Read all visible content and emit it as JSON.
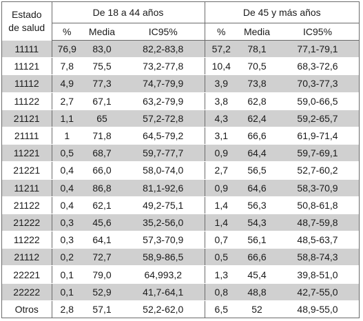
{
  "header": {
    "estado_line1": "Estado",
    "estado_line2": "de salud",
    "group1": "De 18 a 44 años",
    "group2": "De 45 y más años",
    "col_pct": "%",
    "col_media": "Media",
    "col_ic": "IC95%"
  },
  "rows": [
    {
      "estado": "11111",
      "p1": "76,9",
      "m1": "83,0",
      "ic1": "82,2-83,8",
      "p2": "57,2",
      "m2": "78,1",
      "ic2": "77,1-79,1"
    },
    {
      "estado": "11121",
      "p1": "7,8",
      "m1": "75,5",
      "ic1": "73,2-77,8",
      "p2": "10,4",
      "m2": "70,5",
      "ic2": "68,3-72,6"
    },
    {
      "estado": "11112",
      "p1": "4,9",
      "m1": "77,3",
      "ic1": "74,7-79,9",
      "p2": "3,9",
      "m2": "73,8",
      "ic2": "70,3-77,3"
    },
    {
      "estado": "11122",
      "p1": "2,7",
      "m1": "67,1",
      "ic1": "63,2-79,9",
      "p2": "3,8",
      "m2": "62,8",
      "ic2": "59,0-66,5"
    },
    {
      "estado": "21121",
      "p1": "1,1",
      "m1": "65",
      "ic1": "57,2-72,8",
      "p2": "4,3",
      "m2": "62,4",
      "ic2": "59,2-65,7"
    },
    {
      "estado": "21111",
      "p1": "1",
      "m1": "71,8",
      "ic1": "64,5-79,2",
      "p2": "3,1",
      "m2": "66,6",
      "ic2": "61,9-71,4"
    },
    {
      "estado": "11221",
      "p1": "0,5",
      "m1": "68,7",
      "ic1": "59,7-77,7",
      "p2": "0,9",
      "m2": "64,4",
      "ic2": "59,7-69,1"
    },
    {
      "estado": "21221",
      "p1": "0,4",
      "m1": "66,0",
      "ic1": "58,0-74,0",
      "p2": "2,7",
      "m2": "56,5",
      "ic2": "52,7-60,2"
    },
    {
      "estado": "11211",
      "p1": "0,4",
      "m1": "86,8",
      "ic1": "81,1-92,6",
      "p2": "0,9",
      "m2": "64,6",
      "ic2": "58,3-70,9"
    },
    {
      "estado": "21122",
      "p1": "0,4",
      "m1": "62,1",
      "ic1": "49,2-75,1",
      "p2": "1,4",
      "m2": "56,3",
      "ic2": "50,8-61,8"
    },
    {
      "estado": "21222",
      "p1": "0,3",
      "m1": "45,6",
      "ic1": "35,2-56,0",
      "p2": "1,4",
      "m2": "54,3",
      "ic2": "48,7-59,8"
    },
    {
      "estado": "11222",
      "p1": "0,3",
      "m1": "64,1",
      "ic1": "57,3-70,9",
      "p2": "0,7",
      "m2": "56,1",
      "ic2": "48,5-63,7"
    },
    {
      "estado": "21112",
      "p1": "0,2",
      "m1": "72,7",
      "ic1": "58,9-86,5",
      "p2": "0,5",
      "m2": "66,6",
      "ic2": "58,8-74,3"
    },
    {
      "estado": "22221",
      "p1": "0,1",
      "m1": "79,0",
      "ic1": "64,993,2",
      "p2": "1,3",
      "m2": "45,4",
      "ic2": "39,8-51,0"
    },
    {
      "estado": "22222",
      "p1": "0,1",
      "m1": "52,9",
      "ic1": "41,7-64,1",
      "p2": "0,8",
      "m2": "48,8",
      "ic2": "42,7-55,0"
    },
    {
      "estado": "Otros",
      "p1": "2,8",
      "m1": "57,1",
      "ic1": "52,2-62,0",
      "p2": "6,5",
      "m2": "52",
      "ic2": "48,9-55,0"
    }
  ]
}
